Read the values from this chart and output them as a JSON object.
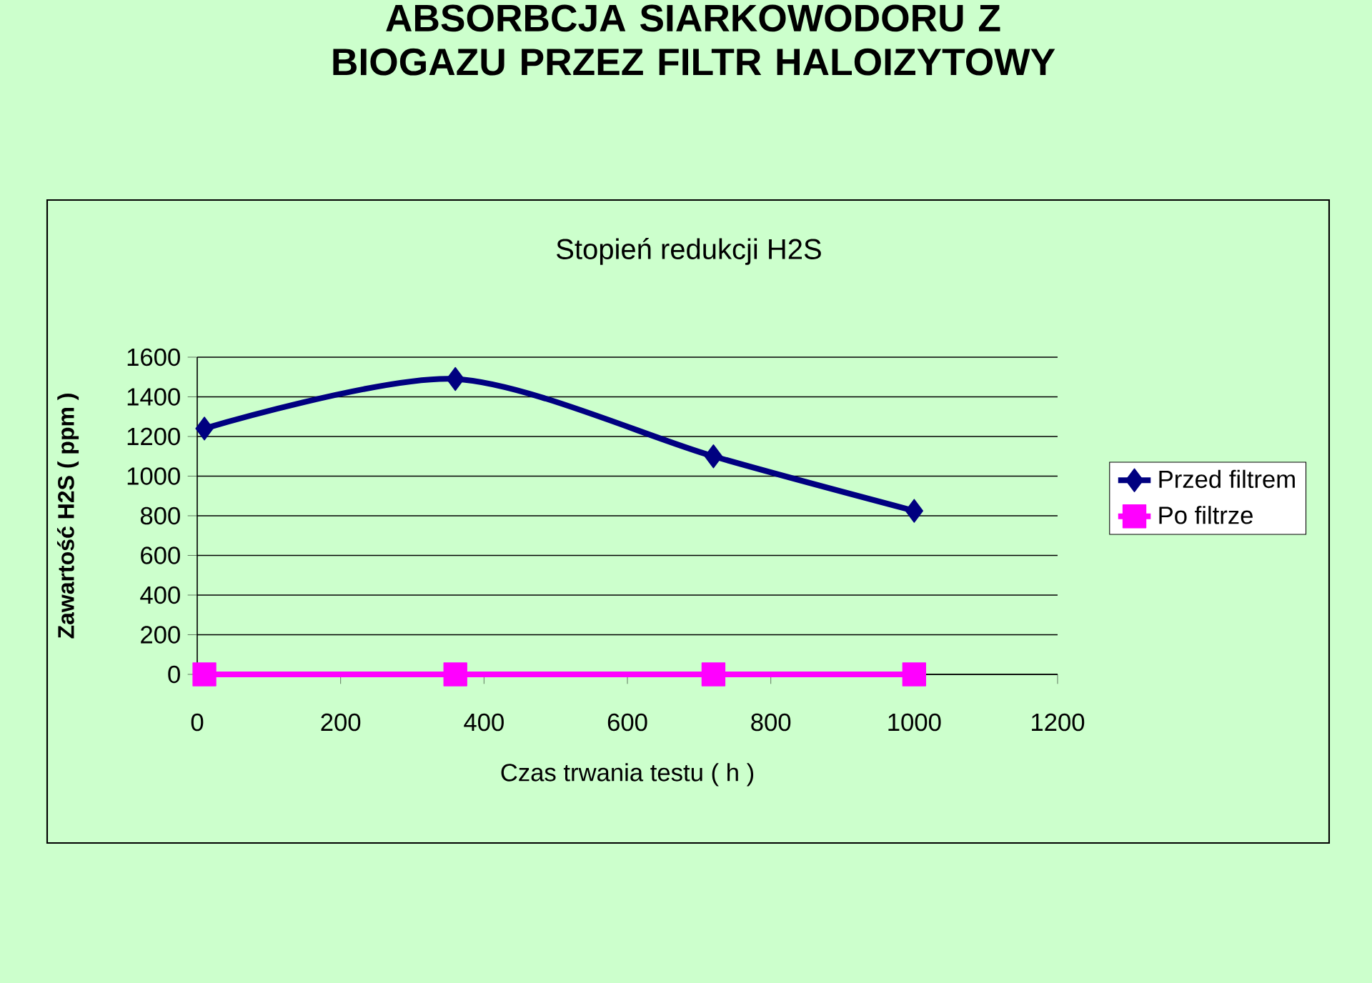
{
  "chart_data": {
    "type": "line",
    "title": "ABSORBCJA SIARKOWODORU Z BIOGAZU PRZEZ FILTR HALOIZYTOWY",
    "subtitle": "Stopień redukcji H2S",
    "xlabel": "Czas trwania testu ( h )",
    "ylabel": "Zawartość H2S ( ppm )",
    "x": [
      10,
      360,
      720,
      1000
    ],
    "series": [
      {
        "name": "Przed filtrem",
        "color": "#000080",
        "marker": "diamond",
        "values": [
          1240,
          1490,
          1100,
          825
        ]
      },
      {
        "name": "Po filtrze",
        "color": "#ff00ff",
        "marker": "square",
        "values": [
          0,
          0,
          0,
          0
        ]
      }
    ],
    "xlim": [
      0,
      1200
    ],
    "xticks": [
      0,
      200,
      400,
      600,
      800,
      1000,
      1200
    ],
    "ylim": [
      0,
      1600
    ],
    "yticks": [
      0,
      200,
      400,
      600,
      800,
      1000,
      1200,
      1400,
      1600
    ],
    "grid": "y",
    "legend": "right",
    "line_style": "solid"
  }
}
